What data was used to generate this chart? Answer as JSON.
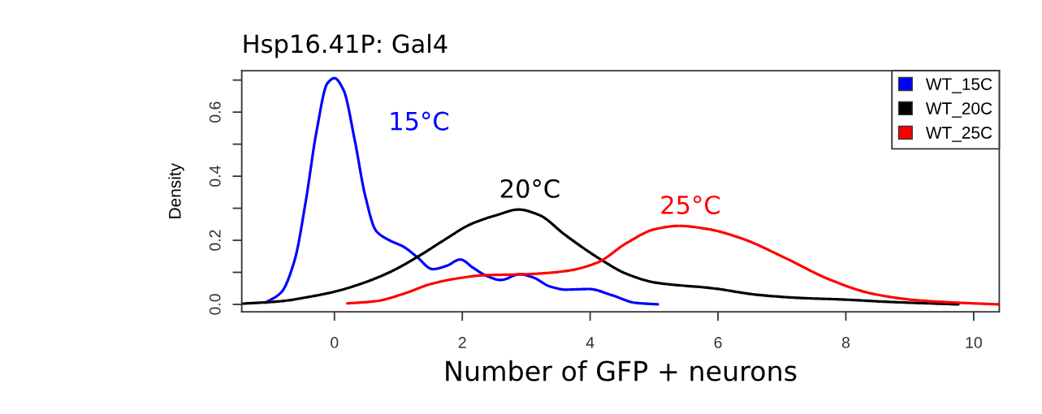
{
  "chart_data": {
    "type": "line",
    "title": "Hsp16.41P: Gal4",
    "xlabel": "Number of GFP + neurons",
    "ylabel": "Density",
    "series": [
      {
        "name": "WT_15C",
        "color": "#0000ff",
        "x": [
          -1.08,
          -0.83,
          -0.62,
          -0.45,
          -0.28,
          -0.11,
          0,
          0.14,
          0.32,
          0.48,
          0.65,
          0.86,
          1.08,
          1.28,
          1.54,
          1.75,
          1.97,
          2.17,
          2.39,
          2.6,
          2.9,
          3.11,
          3.37,
          3.62,
          3.98,
          4.35,
          4.7,
          5.06
        ],
        "values": [
          0.005,
          0.038,
          0.14,
          0.32,
          0.54,
          0.69,
          0.706,
          0.67,
          0.51,
          0.34,
          0.23,
          0.2,
          0.18,
          0.15,
          0.11,
          0.12,
          0.14,
          0.114,
          0.088,
          0.076,
          0.094,
          0.084,
          0.056,
          0.046,
          0.048,
          0.028,
          0.005,
          0.0
        ]
      },
      {
        "name": "WT_20C",
        "color": "#000000",
        "x": [
          -1.45,
          -0.83,
          -0.41,
          0.01,
          0.44,
          0.86,
          1.29,
          1.71,
          2.13,
          2.56,
          2.88,
          3.19,
          3.62,
          4.15,
          4.56,
          5.02,
          5.93,
          6.61,
          7.29,
          7.97,
          8.65,
          9.76
        ],
        "values": [
          0.002,
          0.01,
          0.023,
          0.04,
          0.066,
          0.1,
          0.147,
          0.2,
          0.25,
          0.28,
          0.296,
          0.28,
          0.215,
          0.142,
          0.096,
          0.068,
          0.05,
          0.03,
          0.02,
          0.015,
          0.008,
          0.0
        ]
      },
      {
        "name": "WT_25C",
        "color": "#ff0000",
        "x": [
          0.2,
          0.65,
          1.08,
          1.5,
          1.92,
          2.35,
          2.99,
          3.62,
          4.11,
          4.56,
          5.02,
          5.39,
          5.84,
          6.38,
          7.06,
          7.74,
          8.42,
          9.11,
          9.78,
          10.39
        ],
        "values": [
          0.003,
          0.01,
          0.033,
          0.063,
          0.081,
          0.091,
          0.094,
          0.104,
          0.13,
          0.19,
          0.235,
          0.245,
          0.235,
          0.205,
          0.144,
          0.078,
          0.033,
          0.013,
          0.005,
          0.0
        ]
      }
    ],
    "annotations": [
      "15°C",
      "20°C",
      "25°C"
    ],
    "xlim": [
      -1.45,
      10.4
    ],
    "ylim": [
      -0.023,
      0.729
    ],
    "xticks": [
      0,
      2,
      4,
      6,
      8,
      10
    ],
    "yticks": [
      {
        "value": 0,
        "label": "0.0"
      },
      {
        "value": 0.1,
        "label": null
      },
      {
        "value": 0.2,
        "label": "0.2"
      },
      {
        "value": 0.3,
        "label": null
      },
      {
        "value": 0.4,
        "label": "0.4"
      },
      {
        "value": 0.5,
        "label": null
      },
      {
        "value": 0.6,
        "label": "0.6"
      },
      {
        "value": 0.7,
        "label": null
      }
    ],
    "legend": "top right",
    "grid": false,
    "line_style": "solid",
    "marker": "none"
  }
}
